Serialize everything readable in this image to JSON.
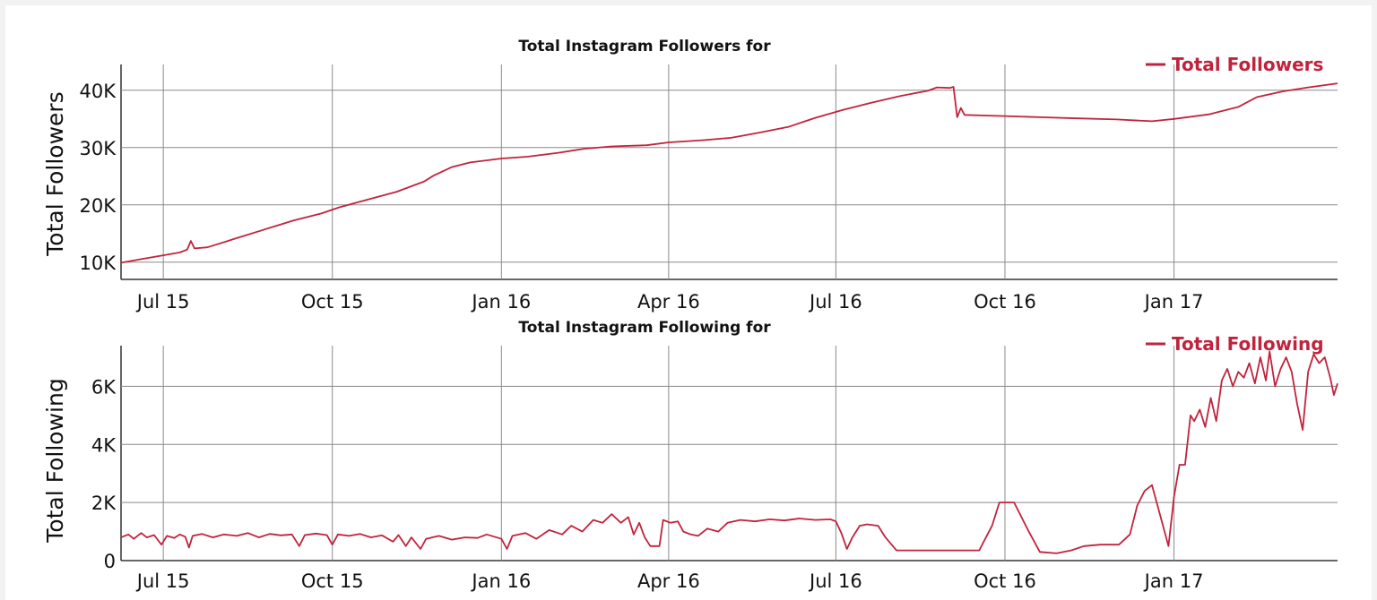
{
  "chart_data": [
    {
      "type": "line",
      "title": "Total Instagram Followers for",
      "ylabel": "Total Followers",
      "xlabel": "",
      "x_ticks": [
        {
          "label": "Jul 15",
          "date": "2015-07-01"
        },
        {
          "label": "Oct 15",
          "date": "2015-10-01"
        },
        {
          "label": "Jan 16",
          "date": "2016-01-01"
        },
        {
          "label": "Apr 16",
          "date": "2016-04-01"
        },
        {
          "label": "Jul 16",
          "date": "2016-07-01"
        },
        {
          "label": "Oct 16",
          "date": "2016-10-01"
        },
        {
          "label": "Jan 17",
          "date": "2017-01-01"
        }
      ],
      "xlim": [
        "2015-06-08",
        "2017-03-31"
      ],
      "ylim": [
        7000,
        44500
      ],
      "y_ticks": [
        {
          "label": "10K",
          "value": 10000
        },
        {
          "label": "20K",
          "value": 20000
        },
        {
          "label": "30K",
          "value": 30000
        },
        {
          "label": "40K",
          "value": 40000
        }
      ],
      "grid": true,
      "legend_position": "top-right",
      "series": [
        {
          "name": "Total Followers",
          "color": "#c0233c",
          "points": [
            [
              "2015-06-08",
              9900
            ],
            [
              "2015-06-20",
              10600
            ],
            [
              "2015-07-01",
              11200
            ],
            [
              "2015-07-10",
              11700
            ],
            [
              "2015-07-14",
              12200
            ],
            [
              "2015-07-16",
              13700
            ],
            [
              "2015-07-18",
              12400
            ],
            [
              "2015-07-25",
              12600
            ],
            [
              "2015-08-10",
              14200
            ],
            [
              "2015-08-25",
              15700
            ],
            [
              "2015-09-10",
              17300
            ],
            [
              "2015-09-25",
              18500
            ],
            [
              "2015-10-05",
              19600
            ],
            [
              "2015-10-20",
              20900
            ],
            [
              "2015-11-05",
              22300
            ],
            [
              "2015-11-20",
              24100
            ],
            [
              "2015-11-25",
              25100
            ],
            [
              "2015-12-05",
              26600
            ],
            [
              "2015-12-15",
              27400
            ],
            [
              "2016-01-01",
              28100
            ],
            [
              "2016-01-15",
              28400
            ],
            [
              "2016-02-01",
              29100
            ],
            [
              "2016-02-15",
              29800
            ],
            [
              "2016-03-01",
              30200
            ],
            [
              "2016-03-20",
              30400
            ],
            [
              "2016-04-01",
              30900
            ],
            [
              "2016-04-20",
              31300
            ],
            [
              "2016-05-05",
              31700
            ],
            [
              "2016-05-20",
              32600
            ],
            [
              "2016-06-05",
              33600
            ],
            [
              "2016-06-20",
              35200
            ],
            [
              "2016-07-05",
              36600
            ],
            [
              "2016-07-20",
              37800
            ],
            [
              "2016-08-05",
              39000
            ],
            [
              "2016-08-20",
              39900
            ],
            [
              "2016-08-25",
              40500
            ],
            [
              "2016-09-01",
              40400
            ],
            [
              "2016-09-03",
              40600
            ],
            [
              "2016-09-05",
              35300
            ],
            [
              "2016-09-07",
              36900
            ],
            [
              "2016-09-09",
              35700
            ],
            [
              "2016-09-20",
              35600
            ],
            [
              "2016-10-01",
              35500
            ],
            [
              "2016-10-20",
              35300
            ],
            [
              "2016-11-10",
              35100
            ],
            [
              "2016-12-01",
              34900
            ],
            [
              "2016-12-20",
              34600
            ],
            [
              "2017-01-01",
              35000
            ],
            [
              "2017-01-20",
              35800
            ],
            [
              "2017-02-05",
              37100
            ],
            [
              "2017-02-15",
              38800
            ],
            [
              "2017-03-01",
              39800
            ],
            [
              "2017-03-15",
              40500
            ],
            [
              "2017-03-31",
              41200
            ]
          ]
        }
      ]
    },
    {
      "type": "line",
      "title": "Total Instagram Following for",
      "ylabel": "Total Following",
      "xlabel": "",
      "x_ticks": [
        {
          "label": "Jul 15",
          "date": "2015-07-01"
        },
        {
          "label": "Oct 15",
          "date": "2015-10-01"
        },
        {
          "label": "Jan 16",
          "date": "2016-01-01"
        },
        {
          "label": "Apr 16",
          "date": "2016-04-01"
        },
        {
          "label": "Jul 16",
          "date": "2016-07-01"
        },
        {
          "label": "Oct 16",
          "date": "2016-10-01"
        },
        {
          "label": "Jan 17",
          "date": "2017-01-01"
        }
      ],
      "xlim": [
        "2015-06-08",
        "2017-03-31"
      ],
      "ylim": [
        0,
        7400
      ],
      "y_ticks": [
        {
          "label": "0",
          "value": 0
        },
        {
          "label": "2K",
          "value": 2000
        },
        {
          "label": "4K",
          "value": 4000
        },
        {
          "label": "6K",
          "value": 6000
        }
      ],
      "grid": true,
      "legend_position": "top-right",
      "series": [
        {
          "name": "Total Following",
          "color": "#c0233c",
          "points": [
            [
              "2015-06-08",
              800
            ],
            [
              "2015-06-12",
              900
            ],
            [
              "2015-06-15",
              750
            ],
            [
              "2015-06-19",
              950
            ],
            [
              "2015-06-22",
              800
            ],
            [
              "2015-06-26",
              880
            ],
            [
              "2015-06-30",
              550
            ],
            [
              "2015-07-03",
              850
            ],
            [
              "2015-07-07",
              780
            ],
            [
              "2015-07-10",
              900
            ],
            [
              "2015-07-13",
              820
            ],
            [
              "2015-07-15",
              450
            ],
            [
              "2015-07-17",
              850
            ],
            [
              "2015-07-22",
              920
            ],
            [
              "2015-07-28",
              800
            ],
            [
              "2015-08-03",
              900
            ],
            [
              "2015-08-10",
              850
            ],
            [
              "2015-08-16",
              950
            ],
            [
              "2015-08-22",
              800
            ],
            [
              "2015-08-28",
              920
            ],
            [
              "2015-09-03",
              870
            ],
            [
              "2015-09-09",
              900
            ],
            [
              "2015-09-13",
              500
            ],
            [
              "2015-09-16",
              880
            ],
            [
              "2015-09-22",
              930
            ],
            [
              "2015-09-28",
              880
            ],
            [
              "2015-10-01",
              550
            ],
            [
              "2015-10-04",
              900
            ],
            [
              "2015-10-10",
              850
            ],
            [
              "2015-10-16",
              920
            ],
            [
              "2015-10-22",
              800
            ],
            [
              "2015-10-28",
              870
            ],
            [
              "2015-11-03",
              650
            ],
            [
              "2015-11-06",
              880
            ],
            [
              "2015-11-10",
              500
            ],
            [
              "2015-11-13",
              800
            ],
            [
              "2015-11-18",
              400
            ],
            [
              "2015-11-21",
              750
            ],
            [
              "2015-11-28",
              850
            ],
            [
              "2015-12-05",
              720
            ],
            [
              "2015-12-12",
              800
            ],
            [
              "2015-12-19",
              780
            ],
            [
              "2015-12-24",
              900
            ],
            [
              "2016-01-01",
              750
            ],
            [
              "2016-01-04",
              400
            ],
            [
              "2016-01-07",
              850
            ],
            [
              "2016-01-14",
              950
            ],
            [
              "2016-01-20",
              750
            ],
            [
              "2016-01-27",
              1050
            ],
            [
              "2016-02-03",
              900
            ],
            [
              "2016-02-08",
              1200
            ],
            [
              "2016-02-14",
              1000
            ],
            [
              "2016-02-20",
              1400
            ],
            [
              "2016-02-25",
              1300
            ],
            [
              "2016-03-01",
              1600
            ],
            [
              "2016-03-06",
              1300
            ],
            [
              "2016-03-10",
              1500
            ],
            [
              "2016-03-13",
              900
            ],
            [
              "2016-03-16",
              1300
            ],
            [
              "2016-03-19",
              800
            ],
            [
              "2016-03-22",
              500
            ],
            [
              "2016-03-27",
              500
            ],
            [
              "2016-03-29",
              1400
            ],
            [
              "2016-04-02",
              1300
            ],
            [
              "2016-04-06",
              1350
            ],
            [
              "2016-04-09",
              1000
            ],
            [
              "2016-04-13",
              900
            ],
            [
              "2016-04-17",
              850
            ],
            [
              "2016-04-22",
              1100
            ],
            [
              "2016-04-28",
              1000
            ],
            [
              "2016-05-03",
              1300
            ],
            [
              "2016-05-10",
              1400
            ],
            [
              "2016-05-18",
              1350
            ],
            [
              "2016-05-26",
              1420
            ],
            [
              "2016-06-03",
              1380
            ],
            [
              "2016-06-11",
              1450
            ],
            [
              "2016-06-20",
              1400
            ],
            [
              "2016-06-28",
              1420
            ],
            [
              "2016-07-01",
              1350
            ],
            [
              "2016-07-04",
              950
            ],
            [
              "2016-07-07",
              400
            ],
            [
              "2016-07-10",
              800
            ],
            [
              "2016-07-14",
              1200
            ],
            [
              "2016-07-18",
              1250
            ],
            [
              "2016-07-24",
              1200
            ],
            [
              "2016-07-28",
              800
            ],
            [
              "2016-08-03",
              350
            ],
            [
              "2016-08-20",
              350
            ],
            [
              "2016-09-10",
              350
            ],
            [
              "2016-09-17",
              350
            ],
            [
              "2016-09-24",
              1200
            ],
            [
              "2016-09-28",
              2000
            ],
            [
              "2016-10-06",
              2000
            ],
            [
              "2016-10-14",
              1000
            ],
            [
              "2016-10-20",
              300
            ],
            [
              "2016-10-29",
              250
            ],
            [
              "2016-11-06",
              350
            ],
            [
              "2016-11-13",
              500
            ],
            [
              "2016-11-22",
              550
            ],
            [
              "2016-12-02",
              550
            ],
            [
              "2016-12-08",
              900
            ],
            [
              "2016-12-12",
              1900
            ],
            [
              "2016-12-16",
              2400
            ],
            [
              "2016-12-20",
              2600
            ],
            [
              "2016-12-26",
              1200
            ],
            [
              "2016-12-29",
              500
            ],
            [
              "2017-01-01",
              2200
            ],
            [
              "2017-01-04",
              3300
            ],
            [
              "2017-01-07",
              3300
            ],
            [
              "2017-01-10",
              5000
            ],
            [
              "2017-01-12",
              4800
            ],
            [
              "2017-01-15",
              5200
            ],
            [
              "2017-01-18",
              4600
            ],
            [
              "2017-01-21",
              5600
            ],
            [
              "2017-01-24",
              4800
            ],
            [
              "2017-01-27",
              6200
            ],
            [
              "2017-01-30",
              6600
            ],
            [
              "2017-02-02",
              6000
            ],
            [
              "2017-02-05",
              6500
            ],
            [
              "2017-02-08",
              6300
            ],
            [
              "2017-02-11",
              6800
            ],
            [
              "2017-02-14",
              6100
            ],
            [
              "2017-02-17",
              7000
            ],
            [
              "2017-02-20",
              6200
            ],
            [
              "2017-02-22",
              7200
            ],
            [
              "2017-02-25",
              6000
            ],
            [
              "2017-02-28",
              6600
            ],
            [
              "2017-03-03",
              7000
            ],
            [
              "2017-03-06",
              6500
            ],
            [
              "2017-03-09",
              5400
            ],
            [
              "2017-03-12",
              4500
            ],
            [
              "2017-03-15",
              6500
            ],
            [
              "2017-03-18",
              7100
            ],
            [
              "2017-03-21",
              6800
            ],
            [
              "2017-03-24",
              7000
            ],
            [
              "2017-03-27",
              6300
            ],
            [
              "2017-03-29",
              5700
            ],
            [
              "2017-03-31",
              6100
            ]
          ]
        }
      ]
    }
  ]
}
